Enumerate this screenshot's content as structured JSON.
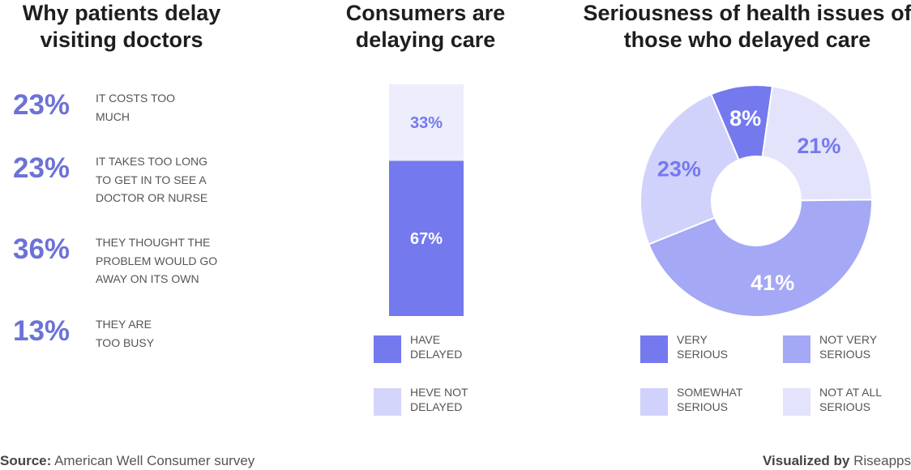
{
  "panels": {
    "reasons": {
      "title": "Why patients delay visiting doctors"
    },
    "delaying": {
      "title": "Consumers are delaying care"
    },
    "seriousness": {
      "title": "Seriousness of health issues of those who delayed care"
    }
  },
  "chart_data": [
    {
      "type": "table",
      "title": "Why patients delay visiting doctors",
      "rows": [
        {
          "value": 23,
          "label": "IT COSTS TOO MUCH",
          "display": "23%"
        },
        {
          "value": 23,
          "label": "IT TAKES TOO LONG TO GET IN TO SEE A DOCTOR OR NURSE",
          "display": "23%"
        },
        {
          "value": 36,
          "label": "THEY THOUGHT THE PROBLEM WOULD GO AWAY ON ITS OWN",
          "display": "36%"
        },
        {
          "value": 13,
          "label": "THEY ARE TOO BUSY",
          "display": "13%"
        }
      ]
    },
    {
      "type": "bar",
      "title": "Consumers are delaying care",
      "stacked": true,
      "categories": [
        "HAVE DELAYED",
        "HEVE NOT DELAYED"
      ],
      "values": [
        67,
        33
      ],
      "labels": [
        "67%",
        "33%"
      ],
      "colors": [
        "#7479ee",
        "#ededfc"
      ],
      "label_colors": [
        "#ffffff",
        "#7479ee"
      ],
      "legend_colors": [
        "#7479ee",
        "#d4d5fa"
      ]
    },
    {
      "type": "pie",
      "title": "Seriousness of health issues of those who delayed care",
      "donut": true,
      "slices": [
        {
          "label": "VERY SERIOUS",
          "value": 8,
          "display": "8%",
          "color": "#7479ee"
        },
        {
          "label": "NOT AT ALL SERIOUS",
          "value": 21,
          "display": "21%",
          "color": "#e3e3fb"
        },
        {
          "label": "NOT VERY SERIOUS",
          "value": 41,
          "display": "41%",
          "color": "#a4a8f5"
        },
        {
          "label": "SOMEWHAT SERIOUS",
          "value": 23,
          "display": "23%",
          "color": "#d0d2fb"
        }
      ],
      "label_colors": {
        "VERY SERIOUS": "#ffffff",
        "NOT AT ALL SERIOUS": "#7479ee",
        "NOT VERY SERIOUS": "#ffffff",
        "SOMEWHAT SERIOUS": "#7479ee"
      },
      "legend": [
        "VERY SERIOUS",
        "NOT VERY SERIOUS",
        "SOMEWHAT SERIOUS",
        "NOT AT ALL SERIOUS"
      ]
    }
  ],
  "footer": {
    "source_label": "Source:",
    "source_text": "American Well Consumer survey",
    "visualized_label": "Visualized by",
    "visualized_text": "Riseapps"
  }
}
